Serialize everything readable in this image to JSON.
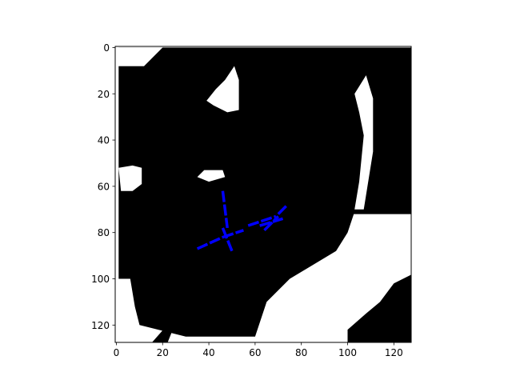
{
  "chart_data": {
    "type": "heatmap",
    "title": "",
    "xlabel": "",
    "ylabel": "",
    "grid": false,
    "xlim": [
      -0.5,
      127.5
    ],
    "ylim": [
      127.5,
      -0.5
    ],
    "y_axis_inverted": true,
    "x_ticks": [
      0,
      20,
      40,
      60,
      80,
      100,
      120
    ],
    "x_tick_labels": [
      "0",
      "20",
      "40",
      "60",
      "80",
      "100",
      "120"
    ],
    "y_ticks": [
      0,
      20,
      40,
      60,
      80,
      100,
      120
    ],
    "y_tick_labels": [
      "0",
      "20",
      "40",
      "60",
      "80",
      "100",
      "120"
    ],
    "grid_map": {
      "rows": 128,
      "cols": 128,
      "value_colors": {
        "occupied": "#000000",
        "free": "#ffffff"
      },
      "occupied_regions": [
        [
          [
            1,
            0
          ],
          [
            1,
            100
          ],
          [
            6,
            100
          ],
          [
            8,
            112
          ],
          [
            10,
            120
          ],
          [
            30,
            125
          ],
          [
            60,
            125
          ],
          [
            65,
            110
          ],
          [
            75,
            100
          ],
          [
            95,
            88
          ],
          [
            100,
            80
          ],
          [
            105,
            65
          ],
          [
            108,
            55
          ],
          [
            113,
            25
          ],
          [
            121,
            16
          ],
          [
            128,
            16
          ],
          [
            128,
            0
          ]
        ],
        [
          [
            15,
            128
          ],
          [
            22,
            128
          ],
          [
            24,
            123
          ],
          [
            28,
            115
          ],
          [
            30,
            105
          ],
          [
            32,
            95
          ],
          [
            28,
            90
          ],
          [
            24,
            85
          ],
          [
            30,
            82
          ],
          [
            31,
            75
          ],
          [
            26,
            70
          ],
          [
            24,
            65
          ],
          [
            28,
            60
          ],
          [
            36,
            56
          ],
          [
            48,
            54
          ],
          [
            56,
            55
          ],
          [
            66,
            58
          ],
          [
            76,
            62
          ],
          [
            88,
            70
          ],
          [
            100,
            72
          ],
          [
            113,
            72
          ],
          [
            128,
            72
          ],
          [
            128,
            0
          ]
        ],
        [
          [
            128,
            98
          ],
          [
            128,
            128
          ],
          [
            100,
            128
          ],
          [
            100,
            122
          ],
          [
            108,
            115
          ],
          [
            114,
            110
          ],
          [
            120,
            102
          ]
        ]
      ],
      "free_pockets": [
        [
          [
            0,
            0
          ],
          [
            0,
            8
          ],
          [
            12,
            8
          ],
          [
            20,
            0
          ]
        ],
        [
          [
            35,
            56
          ],
          [
            38,
            53
          ],
          [
            46,
            53
          ],
          [
            47,
            56
          ],
          [
            40,
            58
          ]
        ],
        [
          [
            12,
            8
          ],
          [
            12,
            1
          ],
          [
            0,
            1
          ],
          [
            0,
            8
          ]
        ],
        [
          [
            105,
            28
          ],
          [
            107,
            38
          ],
          [
            105,
            58
          ],
          [
            103,
            70
          ],
          [
            107,
            70
          ],
          [
            111,
            45
          ],
          [
            111,
            22
          ],
          [
            108,
            12
          ],
          [
            103,
            20
          ]
        ],
        [
          [
            39,
            23
          ],
          [
            43,
            18
          ],
          [
            47,
            14
          ],
          [
            51,
            8
          ],
          [
            53,
            14
          ],
          [
            53,
            27
          ],
          [
            48,
            28
          ],
          [
            42,
            25
          ]
        ],
        [
          [
            1,
            52
          ],
          [
            7,
            51
          ],
          [
            11,
            52
          ],
          [
            11,
            59
          ],
          [
            7,
            62
          ],
          [
            2,
            62
          ]
        ]
      ]
    },
    "circles": [
      {
        "x": 47,
        "y": 70,
        "radius": 4.8
      },
      {
        "x": 47,
        "y": 77.5,
        "radius": 4.8
      },
      {
        "x": 48.5,
        "y": 81.5,
        "radius": 4.8
      },
      {
        "x": 43,
        "y": 83,
        "radius": 4.8
      },
      {
        "x": 49.5,
        "y": 87,
        "radius": 4.8
      },
      {
        "x": 57.5,
        "y": 77.5,
        "radius": 4.8
      },
      {
        "x": 66.5,
        "y": 73.5,
        "radius": 4.8
      },
      {
        "x": 68.5,
        "y": 74,
        "radius": 4.8
      },
      {
        "x": 73.5,
        "y": 68.5,
        "radius": 4.8
      }
    ],
    "segments": [
      {
        "x": [
          46,
          48
        ],
        "y": [
          62,
          78
        ]
      },
      {
        "x": [
          46,
          50
        ],
        "y": [
          78,
          88
        ]
      },
      {
        "x": [
          35,
          46
        ],
        "y": [
          87,
          82
        ]
      },
      {
        "x": [
          46,
          55
        ],
        "y": [
          82,
          79
        ]
      },
      {
        "x": [
          57,
          69
        ],
        "y": [
          77,
          73
        ]
      },
      {
        "x": [
          62,
          72
        ],
        "y": [
          77,
          74
        ]
      },
      {
        "x": [
          70,
          74
        ],
        "y": [
          72,
          68
        ]
      },
      {
        "x": [
          64,
          70
        ],
        "y": [
          79,
          73
        ]
      }
    ],
    "circle_color": "#000000",
    "segment_color": "#0000ff"
  }
}
